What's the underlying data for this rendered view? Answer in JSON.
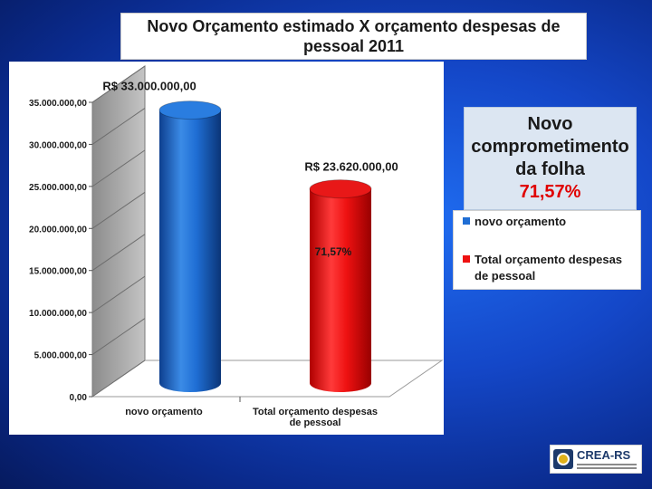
{
  "slide": {
    "title": "Novo Orçamento estimado X orçamento despesas de pessoal 2011"
  },
  "info_box": {
    "line1": "Novo",
    "line2": "comprometimento",
    "line3": "da folha",
    "percent": "71,57%"
  },
  "logo": {
    "text": "CREA-RS"
  },
  "colors": {
    "series_blue": "#1f6ed4",
    "series_red": "#ee1111",
    "percent_text": "#e00000"
  },
  "chart_data": {
    "type": "bar",
    "style": "3d-cylinder",
    "title": "",
    "categories": [
      "novo orçamento",
      "Total orçamento despesas de pessoal"
    ],
    "category_label_lines": [
      [
        "novo orçamento"
      ],
      [
        "Total orçamento despesas",
        "de pessoal"
      ]
    ],
    "values": [
      33000000,
      23620000
    ],
    "data_labels": [
      "R$ 33.000.000,00",
      "R$ 23.620.000,00"
    ],
    "bar_annotation": "71,57%",
    "bar_colors": [
      "#1f6ed4",
      "#ee1111"
    ],
    "ylim": [
      0,
      35000000
    ],
    "y_ticks": [
      0,
      5000000,
      10000000,
      15000000,
      20000000,
      25000000,
      30000000,
      35000000
    ],
    "y_tick_labels": [
      "0,00",
      "5.000.000,00",
      "10.000.000,00",
      "15.000.000,00",
      "20.000.000,00",
      "25.000.000,00",
      "30.000.000,00",
      "35.000.000,00"
    ],
    "grid": true,
    "legend": {
      "placement": "right",
      "entries": [
        "novo orçamento",
        "Total orçamento despesas de pessoal"
      ]
    }
  }
}
